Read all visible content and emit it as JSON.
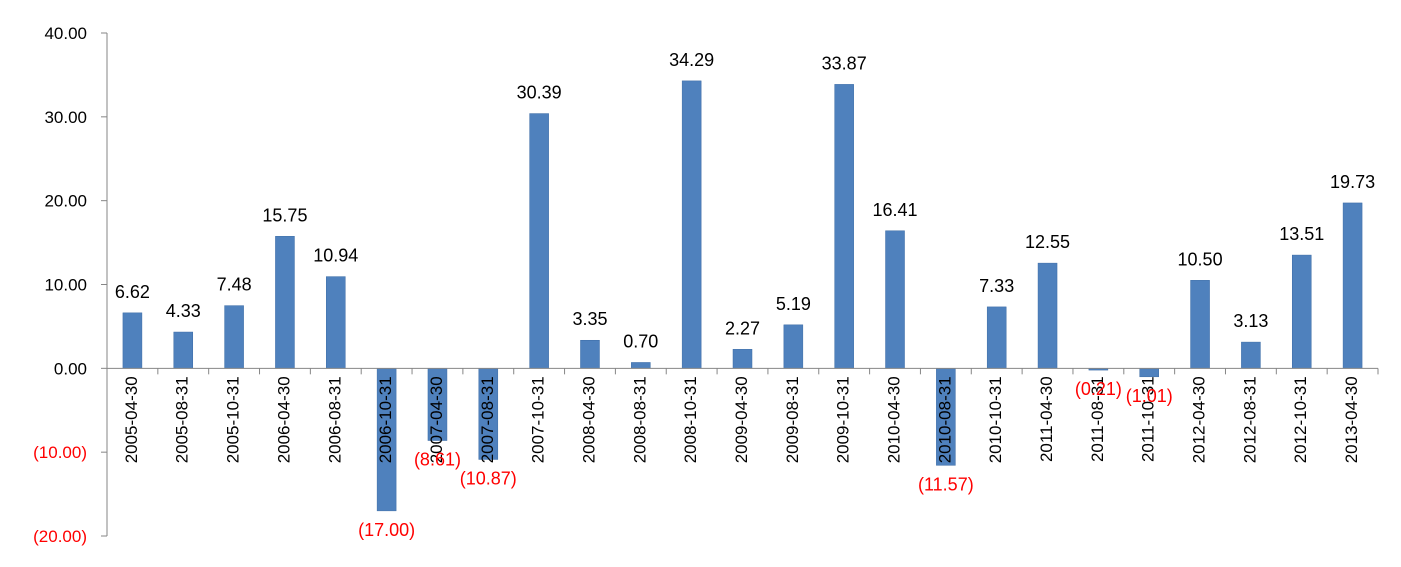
{
  "chart_data": {
    "type": "bar",
    "title": "",
    "xlabel": "",
    "ylabel": "",
    "ylim": [
      -20,
      40
    ],
    "yticks": [
      40,
      30,
      20,
      10,
      0,
      -10,
      -20
    ],
    "ytick_labels": [
      "40.00",
      "30.00",
      "20.00",
      "10.00",
      "0.00",
      "(10.00)",
      "(20.00)"
    ],
    "categories": [
      "2005-04-30",
      "2005-08-31",
      "2005-10-31",
      "2006-04-30",
      "2006-08-31",
      "2006-10-31",
      "2007-04-30",
      "2007-08-31",
      "2007-10-31",
      "2008-04-30",
      "2008-08-31",
      "2008-10-31",
      "2009-04-30",
      "2009-08-31",
      "2009-10-31",
      "2010-04-30",
      "2010-08-31",
      "2010-10-31",
      "2011-04-30",
      "2011-08-31",
      "2011-10-31",
      "2012-04-30",
      "2012-08-31",
      "2012-10-31",
      "2013-04-30"
    ],
    "values": [
      6.62,
      4.33,
      7.48,
      15.75,
      10.94,
      -17.0,
      -8.61,
      -10.87,
      30.39,
      3.35,
      0.7,
      34.29,
      2.27,
      5.19,
      33.87,
      16.41,
      -11.57,
      7.33,
      12.55,
      -0.21,
      -1.01,
      10.5,
      3.13,
      13.51,
      19.73
    ],
    "data_labels": [
      "6.62",
      "4.33",
      "7.48",
      "15.75",
      "10.94",
      "(17.00)",
      "(8.61)",
      "(10.87)",
      "30.39",
      "3.35",
      "0.70",
      "34.29",
      "2.27",
      "5.19",
      "33.87",
      "16.41",
      "(11.57)",
      "7.33",
      "12.55",
      "(0.21)",
      "(1.01)",
      "10.50",
      "3.13",
      "13.51",
      "19.73"
    ],
    "grid": false,
    "legend": "none",
    "colors": {
      "bar": "#4F81BD",
      "bar_edge": "#3B6BA5",
      "positive_text": "#000000",
      "negative_text": "#FF0000",
      "axis": "#868686"
    }
  }
}
